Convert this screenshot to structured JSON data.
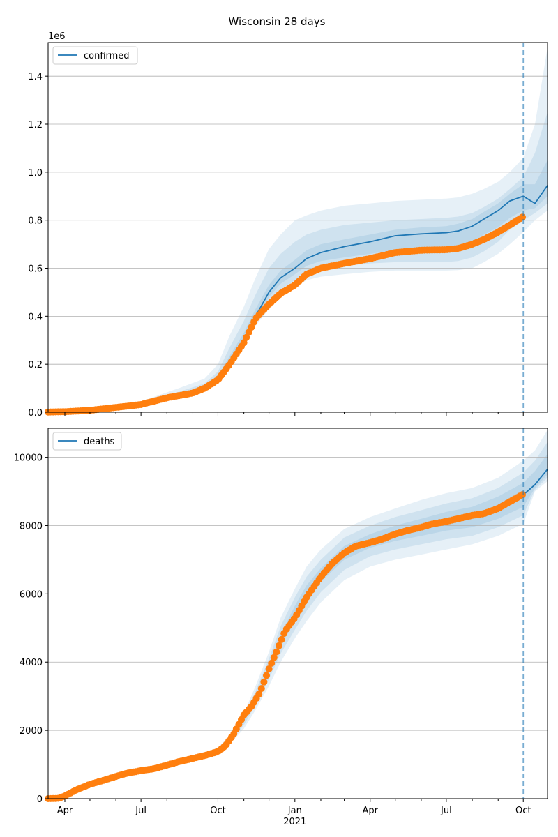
{
  "figure": {
    "suptitle": "Wisconsin 28 days",
    "colors": {
      "model": "#1f77b4",
      "observed": "#ff7f0e",
      "band": "#1f77b4",
      "grid": "#b0b0b0"
    }
  },
  "chart_data": [
    {
      "type": "line",
      "name": "confirmed-panel",
      "legend": [
        "confirmed"
      ],
      "legend_position": "top-left",
      "offset_label": "1e6",
      "ylim": [
        0,
        1.54
      ],
      "yticks": [
        0.0,
        0.2,
        0.4,
        0.6,
        0.8,
        1.0,
        1.2,
        1.4
      ],
      "ytick_labels": [
        "0.0",
        "0.2",
        "0.4",
        "0.6",
        "0.8",
        "1.0",
        "1.2",
        "1.4"
      ],
      "grid": "y",
      "xlim": [
        "2020-03-12",
        "2021-10-30"
      ],
      "forecast_start": "2021-10-01",
      "model": {
        "x": [
          "2020-03-12",
          "2020-05-01",
          "2020-07-01",
          "2020-08-15",
          "2020-09-15",
          "2020-10-01",
          "2020-10-15",
          "2020-11-01",
          "2020-11-15",
          "2020-12-01",
          "2020-12-15",
          "2021-01-01",
          "2021-01-15",
          "2021-02-01",
          "2021-03-01",
          "2021-04-01",
          "2021-05-01",
          "2021-06-01",
          "2021-07-01",
          "2021-07-15",
          "2021-08-01",
          "2021-08-15",
          "2021-09-01",
          "2021-09-15",
          "2021-10-01",
          "2021-10-15",
          "2021-10-30"
        ],
        "values": [
          0.002,
          0.012,
          0.034,
          0.07,
          0.1,
          0.14,
          0.21,
          0.3,
          0.4,
          0.5,
          0.56,
          0.6,
          0.64,
          0.665,
          0.69,
          0.71,
          0.735,
          0.743,
          0.748,
          0.755,
          0.775,
          0.805,
          0.84,
          0.88,
          0.9,
          0.87,
          0.945
        ]
      },
      "bands": [
        {
          "lower": [
            0.002,
            0.011,
            0.03,
            0.06,
            0.09,
            0.13,
            0.19,
            0.27,
            0.36,
            0.43,
            0.48,
            0.52,
            0.55,
            0.565,
            0.575,
            0.585,
            0.59,
            0.59,
            0.59,
            0.592,
            0.6,
            0.625,
            0.66,
            0.7,
            0.75,
            0.8,
            0.84
          ],
          "upper": [
            0.003,
            0.014,
            0.045,
            0.1,
            0.14,
            0.2,
            0.32,
            0.44,
            0.56,
            0.68,
            0.74,
            0.8,
            0.82,
            0.84,
            0.86,
            0.87,
            0.88,
            0.885,
            0.89,
            0.895,
            0.91,
            0.93,
            0.96,
            1.0,
            1.06,
            1.2,
            1.52
          ]
        },
        {
          "lower": [
            0.002,
            0.012,
            0.032,
            0.065,
            0.095,
            0.135,
            0.2,
            0.285,
            0.38,
            0.46,
            0.51,
            0.55,
            0.58,
            0.6,
            0.61,
            0.62,
            0.625,
            0.625,
            0.626,
            0.63,
            0.645,
            0.67,
            0.71,
            0.76,
            0.8,
            0.83,
            0.87
          ],
          "upper": [
            0.003,
            0.013,
            0.04,
            0.085,
            0.12,
            0.17,
            0.27,
            0.38,
            0.49,
            0.6,
            0.66,
            0.71,
            0.74,
            0.76,
            0.78,
            0.79,
            0.8,
            0.805,
            0.81,
            0.815,
            0.83,
            0.855,
            0.89,
            0.93,
            0.98,
            1.08,
            1.25
          ]
        },
        {
          "lower": [
            0.002,
            0.012,
            0.033,
            0.067,
            0.097,
            0.138,
            0.205,
            0.293,
            0.39,
            0.48,
            0.535,
            0.575,
            0.61,
            0.63,
            0.645,
            0.66,
            0.675,
            0.68,
            0.683,
            0.69,
            0.71,
            0.74,
            0.77,
            0.81,
            0.84,
            0.85,
            0.9
          ],
          "upper": [
            0.002,
            0.012,
            0.036,
            0.075,
            0.106,
            0.15,
            0.235,
            0.33,
            0.43,
            0.53,
            0.59,
            0.635,
            0.675,
            0.7,
            0.72,
            0.74,
            0.76,
            0.77,
            0.775,
            0.785,
            0.805,
            0.835,
            0.87,
            0.91,
            0.95,
            0.95,
            1.05
          ]
        }
      ],
      "observed": {
        "x": [
          "2020-03-12",
          "2020-04-01",
          "2020-05-01",
          "2020-06-01",
          "2020-07-01",
          "2020-07-15",
          "2020-08-01",
          "2020-09-01",
          "2020-09-15",
          "2020-10-01",
          "2020-10-15",
          "2020-11-01",
          "2020-11-15",
          "2020-12-01",
          "2020-12-15",
          "2021-01-01",
          "2021-01-15",
          "2021-02-01",
          "2021-03-01",
          "2021-04-01",
          "2021-05-01",
          "2021-06-01",
          "2021-07-01",
          "2021-07-15",
          "2021-08-01",
          "2021-08-15",
          "2021-09-01",
          "2021-09-15",
          "2021-10-01"
        ],
        "values": [
          0.001,
          0.002,
          0.008,
          0.02,
          0.032,
          0.045,
          0.06,
          0.08,
          0.1,
          0.135,
          0.2,
          0.29,
          0.39,
          0.45,
          0.495,
          0.53,
          0.575,
          0.6,
          0.62,
          0.64,
          0.665,
          0.675,
          0.677,
          0.682,
          0.7,
          0.72,
          0.75,
          0.78,
          0.815
        ]
      }
    },
    {
      "type": "line",
      "name": "deaths-panel",
      "legend": [
        "deaths"
      ],
      "legend_position": "top-left",
      "ylim": [
        0,
        10850
      ],
      "yticks": [
        0,
        2000,
        4000,
        6000,
        8000,
        10000
      ],
      "ytick_labels": [
        "0",
        "2000",
        "4000",
        "6000",
        "8000",
        "10000"
      ],
      "grid": "y",
      "xlim": [
        "2020-03-12",
        "2021-10-30"
      ],
      "xtick_labels": [
        "Apr",
        "Jul",
        "Oct",
        "Jan",
        "Apr",
        "Jul",
        "Oct"
      ],
      "xtick_dates": [
        "2020-04-01",
        "2020-07-01",
        "2020-10-01",
        "2021-01-01",
        "2021-04-01",
        "2021-07-01",
        "2021-10-01"
      ],
      "year_label": "2021",
      "forecast_start": "2021-10-01",
      "model": {
        "x": [
          "2021-10-01",
          "2021-10-15",
          "2021-10-30"
        ],
        "values": [
          8900,
          9200,
          9650
        ]
      },
      "bands": [
        {
          "x": [
            "2020-09-15",
            "2020-10-01",
            "2020-10-15",
            "2020-11-01",
            "2020-11-15",
            "2020-12-01",
            "2020-12-15",
            "2021-01-01",
            "2021-01-15",
            "2021-02-01",
            "2021-03-01",
            "2021-04-01",
            "2021-05-01",
            "2021-06-01",
            "2021-07-01",
            "2021-08-01",
            "2021-09-01",
            "2021-10-01",
            "2021-10-15",
            "2021-10-30"
          ],
          "lower": [
            1300,
            1400,
            1600,
            2050,
            2600,
            3300,
            4000,
            4700,
            5200,
            5750,
            6400,
            6800,
            7000,
            7150,
            7300,
            7450,
            7700,
            8050,
            9000,
            9300
          ],
          "upper": [
            1350,
            1500,
            1850,
            2500,
            3300,
            4300,
            5300,
            6150,
            6800,
            7300,
            7900,
            8250,
            8500,
            8750,
            8950,
            9100,
            9400,
            9900,
            10200,
            10800
          ]
        },
        {
          "x": [
            "2020-09-15",
            "2020-10-01",
            "2020-10-15",
            "2020-11-01",
            "2020-11-15",
            "2020-12-01",
            "2020-12-15",
            "2021-01-01",
            "2021-01-15",
            "2021-02-01",
            "2021-03-01",
            "2021-04-01",
            "2021-05-01",
            "2021-06-01",
            "2021-07-01",
            "2021-08-01",
            "2021-09-01",
            "2021-10-01",
            "2021-10-15",
            "2021-10-30"
          ],
          "lower": [
            1310,
            1420,
            1650,
            2150,
            2750,
            3500,
            4250,
            4950,
            5500,
            6050,
            6700,
            7100,
            7300,
            7450,
            7600,
            7700,
            7950,
            8300,
            9050,
            9400
          ],
          "upper": [
            1340,
            1480,
            1800,
            2400,
            3150,
            4100,
            5050,
            5900,
            6500,
            7000,
            7650,
            8000,
            8250,
            8450,
            8650,
            8800,
            9100,
            9550,
            9900,
            10450
          ]
        },
        {
          "x": [
            "2020-09-15",
            "2020-10-01",
            "2020-10-15",
            "2020-11-01",
            "2020-11-15",
            "2020-12-01",
            "2020-12-15",
            "2021-01-01",
            "2021-01-15",
            "2021-02-01",
            "2021-03-01",
            "2021-04-01",
            "2021-05-01",
            "2021-06-01",
            "2021-07-01",
            "2021-08-01",
            "2021-09-01",
            "2021-10-01",
            "2021-10-15",
            "2021-10-30"
          ],
          "lower": [
            1320,
            1440,
            1700,
            2250,
            2900,
            3700,
            4500,
            5200,
            5800,
            6350,
            7000,
            7350,
            7550,
            7700,
            7850,
            7950,
            8200,
            8550,
            9100,
            9500
          ],
          "upper": [
            1330,
            1460,
            1750,
            2300,
            3000,
            3900,
            4800,
            5650,
            6250,
            6750,
            7400,
            7750,
            8000,
            8200,
            8400,
            8550,
            8850,
            9250,
            9600,
            10100
          ]
        }
      ],
      "observed": {
        "x": [
          "2020-03-12",
          "2020-03-25",
          "2020-04-01",
          "2020-04-15",
          "2020-05-01",
          "2020-05-15",
          "2020-06-01",
          "2020-06-15",
          "2020-07-01",
          "2020-07-15",
          "2020-08-01",
          "2020-08-15",
          "2020-09-01",
          "2020-09-15",
          "2020-10-01",
          "2020-10-10",
          "2020-10-20",
          "2020-11-01",
          "2020-11-10",
          "2020-11-20",
          "2020-12-01",
          "2020-12-10",
          "2020-12-20",
          "2021-01-01",
          "2021-01-15",
          "2021-02-01",
          "2021-02-15",
          "2021-03-01",
          "2021-03-15",
          "2021-04-01",
          "2021-04-15",
          "2021-05-01",
          "2021-05-15",
          "2021-06-01",
          "2021-06-15",
          "2021-07-01",
          "2021-07-15",
          "2021-08-01",
          "2021-08-15",
          "2021-09-01",
          "2021-09-15",
          "2021-10-01"
        ],
        "values": [
          0,
          10,
          80,
          260,
          420,
          520,
          650,
          750,
          820,
          870,
          980,
          1080,
          1180,
          1260,
          1380,
          1550,
          1900,
          2450,
          2700,
          3100,
          3800,
          4300,
          4900,
          5300,
          5900,
          6500,
          6900,
          7200,
          7400,
          7500,
          7600,
          7750,
          7850,
          7950,
          8050,
          8120,
          8200,
          8300,
          8350,
          8500,
          8700,
          8920
        ]
      }
    }
  ]
}
